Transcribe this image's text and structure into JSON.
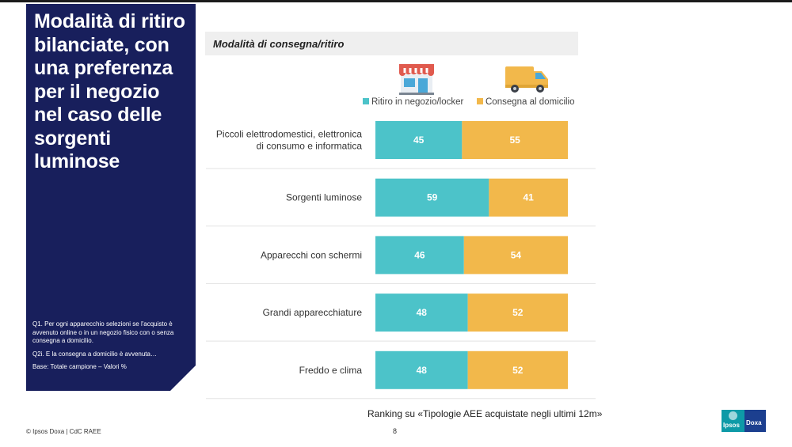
{
  "panel": {
    "headline": "Modalità di ritiro bilanciate, con una preferenza per il negozio nel caso delle sorgenti luminose",
    "note_q1": "Q1. Per ogni apparecchio selezioni se l'acquisto è avvenuto online o in un negozio fisico con o senza consegna a domicilio.",
    "note_q2": "Q2i. E la consegna a domicilio è avvenuta…",
    "note_base": "Base: Totale campione – Valori %"
  },
  "chart_header": "Modalità di consegna/ritiro",
  "icons": {
    "shop": "shop-icon",
    "van": "delivery-van-icon"
  },
  "colors": {
    "series_a": "#4cc3c9",
    "series_b": "#f2b84b",
    "navy": "#181f5c"
  },
  "chart_data": {
    "type": "bar",
    "orientation": "horizontal",
    "stacked": true,
    "categories": [
      [
        "Piccoli elettrodomestici, elettronica",
        "di consumo e informatica"
      ],
      [
        "Sorgenti luminose"
      ],
      [
        "Apparecchi con schermi"
      ],
      [
        "Grandi apparecchiature"
      ],
      [
        "Freddo e clima"
      ]
    ],
    "series": [
      {
        "name": "Ritiro in negozio/locker",
        "values": [
          45,
          59,
          46,
          48,
          48
        ]
      },
      {
        "name": "Consegna al domicilio",
        "values": [
          55,
          41,
          54,
          52,
          52
        ]
      }
    ],
    "xlim": [
      0,
      100
    ],
    "legend_position": "top"
  },
  "footer_note": "Ranking su «Tipologie AEE acquistate negli ultimi 12m»",
  "copyright": "© Ipsos Doxa | CdC RAEE",
  "page_number": "8",
  "logo": {
    "left": "Ipsos",
    "right": "Doxa"
  }
}
